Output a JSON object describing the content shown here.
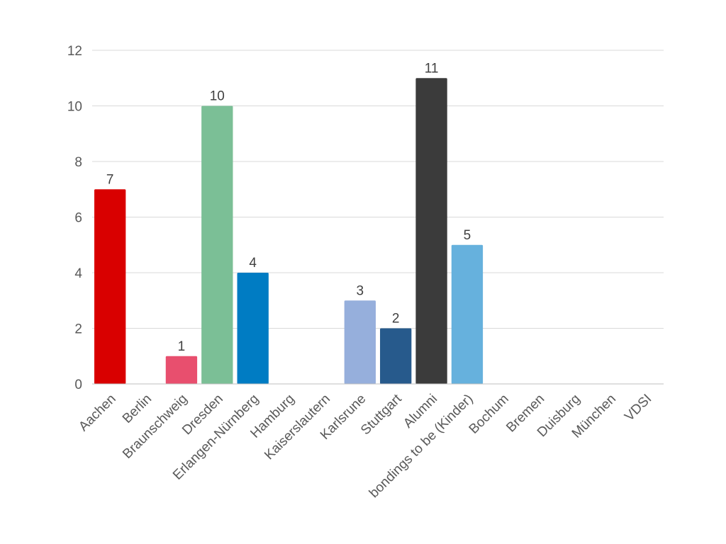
{
  "chart_data": {
    "type": "bar",
    "title": "",
    "xlabel": "",
    "ylabel": "",
    "ylim": [
      0,
      12
    ],
    "yticks": [
      0,
      2,
      4,
      6,
      8,
      10,
      12
    ],
    "grid": true,
    "categories": [
      "Aachen",
      "Berlin",
      "Braunschweig",
      "Dresden",
      "Erlangen-Nürnberg",
      "Hamburg",
      "Kaiserslautern",
      "Karlsrune",
      "Stuttgart",
      "Alumni",
      "bondings to be (Kinder)",
      "Bochum",
      "Bremen",
      "Duisburg",
      "München",
      "VDSI"
    ],
    "values": [
      7,
      0,
      1,
      10,
      4,
      0,
      0,
      3,
      2,
      11,
      5,
      0,
      0,
      0,
      0,
      0
    ],
    "data_labels": [
      "7",
      "",
      "1",
      "10",
      "4",
      "",
      "",
      "3",
      "2",
      "11",
      "5",
      "",
      "",
      "",
      "",
      ""
    ],
    "colors": [
      "#d90000",
      "#e84f6e",
      "#e84f6e",
      "#7bbf96",
      "#007cc3",
      "#007cc3",
      "#007cc3",
      "#96afdc",
      "#275a8c",
      "#3b3b3b",
      "#66b1dd",
      "#66b1dd",
      "#66b1dd",
      "#66b1dd",
      "#66b1dd",
      "#66b1dd"
    ]
  }
}
